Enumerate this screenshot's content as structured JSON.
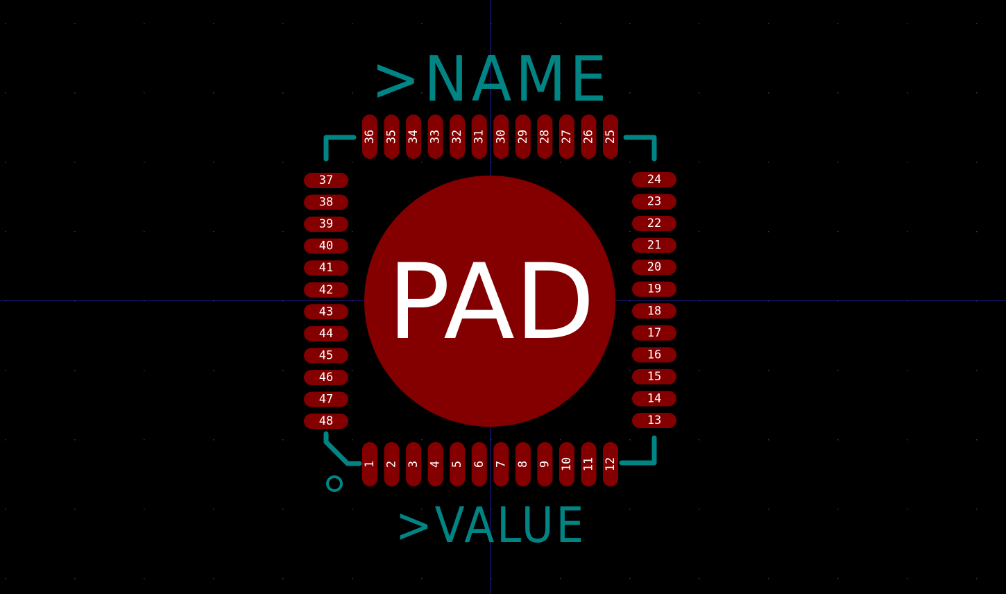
{
  "colors": {
    "background": "#000000",
    "grid_dot": "#3a3a3a",
    "axis": "#1a1aa0",
    "pad": "#840000",
    "silkscreen": "#008484",
    "pad_text": "#ffffff"
  },
  "footprint": {
    "name_label": ">NAME",
    "value_label": ">VALUE",
    "center_pad_label": "PAD",
    "pads": {
      "bottom": [
        "1",
        "2",
        "3",
        "4",
        "5",
        "6",
        "7",
        "8",
        "9",
        "10",
        "11",
        "12"
      ],
      "right": [
        "13",
        "14",
        "15",
        "16",
        "17",
        "18",
        "19",
        "20",
        "21",
        "22",
        "23",
        "24"
      ],
      "top": [
        "25",
        "26",
        "27",
        "28",
        "29",
        "30",
        "31",
        "32",
        "33",
        "34",
        "35",
        "36"
      ],
      "left": [
        "37",
        "38",
        "39",
        "40",
        "41",
        "42",
        "43",
        "44",
        "45",
        "46",
        "47",
        "48"
      ]
    }
  }
}
